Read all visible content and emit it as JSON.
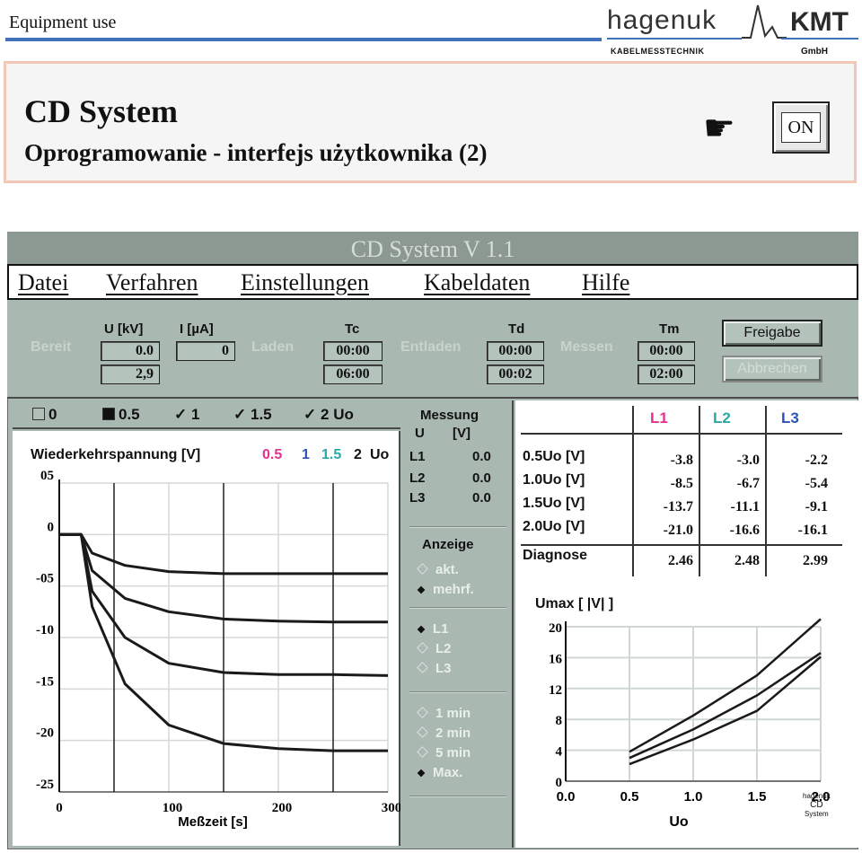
{
  "header": {
    "left_text": "Equipment use",
    "brand": "hagenuk",
    "brand_sub": "KABELMESSTECHNIK",
    "company": "KMT",
    "company_sub": "GmbH"
  },
  "slide": {
    "title": "CD System",
    "subtitle": "Oprogramowanie - interfejs użytkownika (2)",
    "on_button": "ON",
    "hand_icon": "pointing-hand-icon"
  },
  "window": {
    "title": "CD System  V 1.1",
    "menu": [
      "Datei",
      "Verfahren",
      "Einstellungen",
      "Kabeldaten",
      "Hilfe"
    ]
  },
  "controls": {
    "bereit": "Bereit",
    "u_label": "U [kV]",
    "i_label": "I [µA]",
    "u_value": "0.0",
    "u_set": "2,9",
    "i_value": "0",
    "laden": "Laden",
    "tc_label": "Tc",
    "tc_value": "00:00",
    "tc_set": "06:00",
    "entladen": "Entladen",
    "td_label": "Td",
    "td_value": "00:00",
    "td_set": "00:02",
    "messen": "Messen",
    "tm_label": "Tm",
    "tm_value": "00:00",
    "tm_set": "02:00",
    "freigabe": "Freigabe",
    "abbrechen": "Abbrechen"
  },
  "selection": {
    "opt0": "0",
    "opt05": "0.5",
    "opt1": "1",
    "opt15": "1.5",
    "opt2": "2",
    "uo": "Uo",
    "check": "✓"
  },
  "graph": {
    "title": "Wiederkehrspannung [V]",
    "leg_05": "0.5",
    "leg_1": "1",
    "leg_15": "1.5",
    "leg_2": "2",
    "leg_uo": "Uo",
    "colors": {
      "c05": "#e0338f",
      "c1": "#2a52b8",
      "c15": "#2aa7a7"
    },
    "xlabel": "Meßzeit [s]",
    "x_ticks": [
      "0",
      "100",
      "200",
      "300"
    ],
    "y_ticks": [
      "05",
      "0",
      "-05",
      "-10",
      "-15",
      "-20",
      "-25"
    ]
  },
  "messung": {
    "title": "Messung",
    "col_u": "U",
    "col_v": "[V]",
    "rows": [
      {
        "name": "L1",
        "value": "0.0"
      },
      {
        "name": "L2",
        "value": "0.0"
      },
      {
        "name": "L3",
        "value": "0.0"
      }
    ]
  },
  "anzeige": {
    "title": "Anzeige",
    "akt": "akt.",
    "mehrf": "mehrf.",
    "l1": "L1",
    "l2": "L2",
    "l3": "L3",
    "t1": "1 min",
    "t2": "2 min",
    "t5": "5 min",
    "tmax": "Max."
  },
  "diagnose": {
    "headers": [
      "L1",
      "L2",
      "L3"
    ],
    "header_colors": [
      "#e0338f",
      "#2aa7a7",
      "#2a52b8"
    ],
    "rows": [
      {
        "label": "0.5Uo [V]",
        "values": [
          "-3.8",
          "-3.0",
          "-2.2"
        ]
      },
      {
        "label": "1.0Uo [V]",
        "values": [
          "-8.5",
          "-6.7",
          "-5.4"
        ]
      },
      {
        "label": "1.5Uo [V]",
        "values": [
          "-13.7",
          "-11.1",
          "-9.1"
        ]
      },
      {
        "label": "2.0Uo [V]",
        "values": [
          "-21.0",
          "-16.6",
          "-16.1"
        ]
      }
    ],
    "diag_label": "Diagnose",
    "diag_values": [
      "2.46",
      "2.48",
      "2.99"
    ]
  },
  "umax": {
    "title": "Umax [ |V| ]",
    "y_ticks": [
      "20",
      "16",
      "12",
      "8",
      "4",
      "0"
    ],
    "x_ticks": [
      "0.0",
      "0.5",
      "1.0",
      "1.5",
      "2.0"
    ],
    "xlabel": "Uo"
  },
  "logo": {
    "l1": "hagenuk",
    "l2": "CD",
    "l3": "System"
  },
  "chart_data": [
    {
      "type": "line",
      "title": "Wiederkehrspannung [V]",
      "xlabel": "Meßzeit [s]",
      "ylabel": "",
      "xlim": [
        0,
        300
      ],
      "ylim": [
        -25,
        5
      ],
      "series": [
        {
          "name": "0.5",
          "x": [
            0,
            20,
            30,
            60,
            100,
            150,
            200,
            250,
            300
          ],
          "y": [
            0,
            0,
            -1.8,
            -3.0,
            -3.6,
            -3.8,
            -3.8,
            -3.8,
            -3.8
          ]
        },
        {
          "name": "1",
          "x": [
            0,
            20,
            30,
            60,
            100,
            150,
            200,
            250,
            300
          ],
          "y": [
            0,
            0,
            -3.5,
            -6.2,
            -7.5,
            -8.2,
            -8.4,
            -8.5,
            -8.5
          ]
        },
        {
          "name": "1.5",
          "x": [
            0,
            20,
            30,
            60,
            100,
            150,
            200,
            250,
            300
          ],
          "y": [
            0,
            0,
            -5.5,
            -10.0,
            -12.5,
            -13.4,
            -13.6,
            -13.6,
            -13.7
          ]
        },
        {
          "name": "2",
          "x": [
            0,
            20,
            30,
            60,
            100,
            150,
            200,
            250,
            300
          ],
          "y": [
            0,
            0,
            -7.0,
            -14.5,
            -18.5,
            -20.3,
            -20.8,
            -21.0,
            -21.0
          ]
        }
      ]
    },
    {
      "type": "line",
      "title": "Umax [ |V| ]",
      "xlabel": "Uo",
      "ylabel": "",
      "xlim": [
        0,
        2
      ],
      "ylim": [
        0,
        20
      ],
      "x": [
        0.5,
        1.0,
        1.5,
        2.0
      ],
      "series": [
        {
          "name": "L1",
          "values": [
            3.8,
            8.5,
            13.7,
            21.0
          ]
        },
        {
          "name": "L2",
          "values": [
            3.0,
            6.7,
            11.1,
            16.6
          ]
        },
        {
          "name": "L3",
          "values": [
            2.2,
            5.4,
            9.1,
            16.1
          ]
        }
      ]
    }
  ]
}
